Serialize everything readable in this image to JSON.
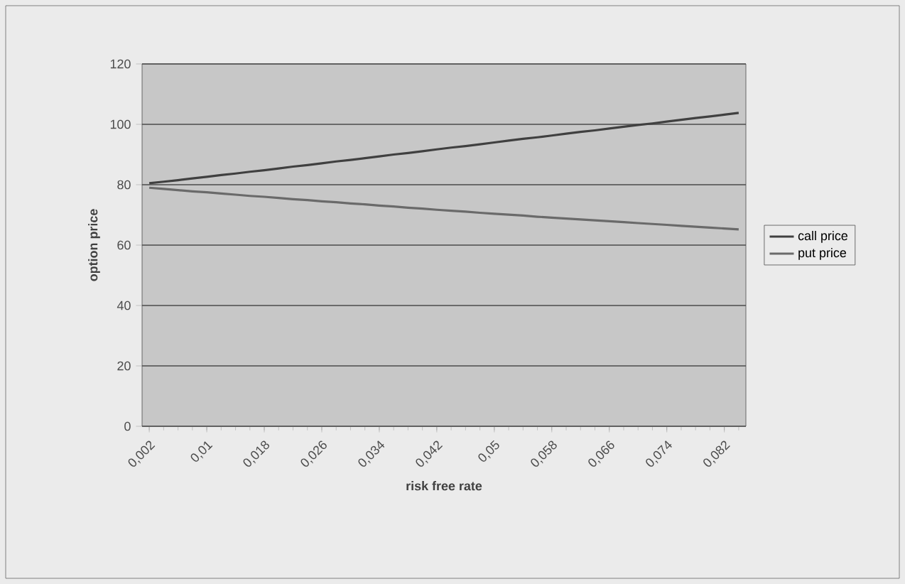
{
  "chart_data": {
    "type": "line",
    "xlabel": "risk free rate",
    "ylabel": "option price",
    "categories": [
      "0,002",
      null,
      null,
      null,
      "0,01",
      null,
      null,
      null,
      "0,018",
      null,
      null,
      null,
      "0,026",
      null,
      null,
      null,
      "0,034",
      null,
      null,
      null,
      "0,042",
      null,
      null,
      null,
      "0,05",
      null,
      null,
      null,
      "0,058",
      null,
      null,
      null,
      "0,066",
      null,
      null,
      null,
      "0,074",
      null,
      null,
      null,
      "0,082",
      null
    ],
    "series": [
      {
        "name": "call price",
        "color": "#404040",
        "values": [
          80.5,
          81.0,
          81.5,
          82.1,
          82.6,
          83.2,
          83.7,
          84.3,
          84.8,
          85.4,
          86.0,
          86.5,
          87.1,
          87.7,
          88.2,
          88.8,
          89.4,
          90.0,
          90.5,
          91.1,
          91.7,
          92.3,
          92.8,
          93.4,
          94.0,
          94.6,
          95.2,
          95.7,
          96.3,
          96.9,
          97.5,
          98.0,
          98.6,
          99.2,
          99.8,
          100.3,
          100.9,
          101.5,
          102.1,
          102.6,
          103.2,
          103.8
        ]
      },
      {
        "name": "put price",
        "color": "#6a6a6a",
        "values": [
          79.0,
          78.6,
          78.2,
          77.8,
          77.5,
          77.1,
          76.7,
          76.3,
          76.0,
          75.6,
          75.2,
          74.9,
          74.5,
          74.2,
          73.8,
          73.5,
          73.1,
          72.8,
          72.4,
          72.1,
          71.7,
          71.4,
          71.1,
          70.7,
          70.4,
          70.1,
          69.8,
          69.4,
          69.1,
          68.8,
          68.5,
          68.2,
          67.9,
          67.6,
          67.3,
          67.0,
          66.7,
          66.4,
          66.1,
          65.8,
          65.5,
          65.2
        ]
      }
    ],
    "ylim": [
      0,
      120
    ],
    "yticks": [
      0,
      20,
      40,
      60,
      80,
      100,
      120
    ],
    "grid": "y",
    "legend": "right",
    "marker": "none",
    "line_style": "solid"
  }
}
